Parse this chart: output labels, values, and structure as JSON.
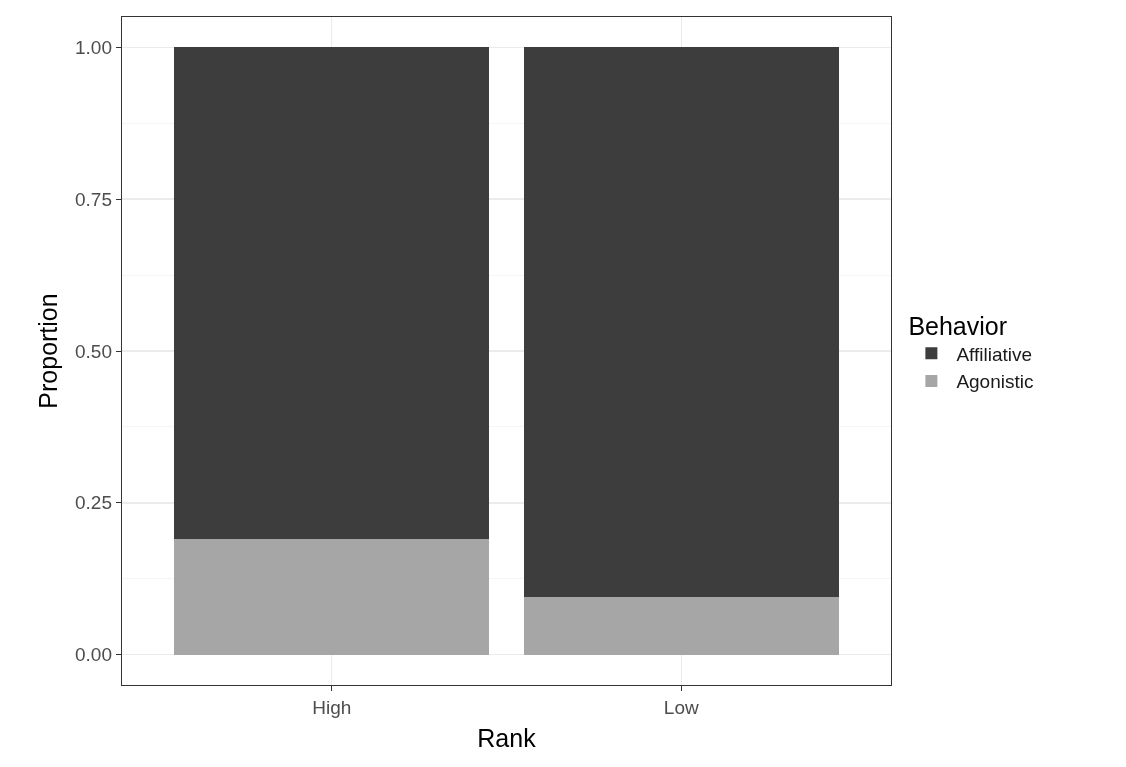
{
  "chart_data": {
    "type": "bar",
    "stacked": true,
    "xlabel": "Rank",
    "ylabel": "Proportion",
    "legend_title": "Behavior",
    "categories": [
      "High",
      "Low"
    ],
    "series": [
      {
        "name": "Agonistic",
        "color": "#a6a6a6",
        "values": [
          0.19,
          0.095
        ]
      },
      {
        "name": "Affiliative",
        "color": "#3d3d3d",
        "values": [
          0.81,
          0.905
        ]
      }
    ],
    "ylim": [
      -0.05,
      1.05
    ],
    "yticks": [
      {
        "value": 0,
        "label": "0.00"
      },
      {
        "value": 0.25,
        "label": "0.25"
      },
      {
        "value": 0.5,
        "label": "0.50"
      },
      {
        "value": 0.75,
        "label": "0.75"
      },
      {
        "value": 1,
        "label": "1.00"
      }
    ],
    "grid": true,
    "legend": "right"
  }
}
